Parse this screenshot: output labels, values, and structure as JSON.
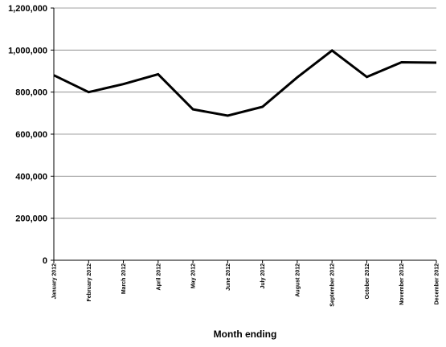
{
  "chart_data": {
    "type": "line",
    "title": "",
    "xlabel": "Month ending",
    "ylabel": "",
    "categories": [
      "January 2012",
      "February 2012",
      "March 2012",
      "April 2012",
      "May 2012",
      "June 2012",
      "July 2012",
      "August 2012",
      "September 2012",
      "October 2012",
      "November 2012",
      "December 2012"
    ],
    "series": [
      {
        "values": [
          880000,
          800000,
          838000,
          885000,
          718000,
          688000,
          730000,
          870000,
          998000,
          872000,
          942000,
          940000
        ]
      }
    ],
    "ylim": [
      0,
      1200000
    ],
    "y_ticks": [
      {
        "value": 0,
        "label": "0"
      },
      {
        "value": 200000,
        "label": "200,000"
      },
      {
        "value": 400000,
        "label": "400,000"
      },
      {
        "value": 600000,
        "label": "600,000"
      },
      {
        "value": 800000,
        "label": "800,000"
      },
      {
        "value": 1000000,
        "label": "1,000,000"
      },
      {
        "value": 1200000,
        "label": "1,200,000"
      }
    ],
    "grid": true,
    "legend": "none",
    "colors": {
      "line": "#000000",
      "grid": "#808080",
      "axis": "#000000"
    }
  }
}
